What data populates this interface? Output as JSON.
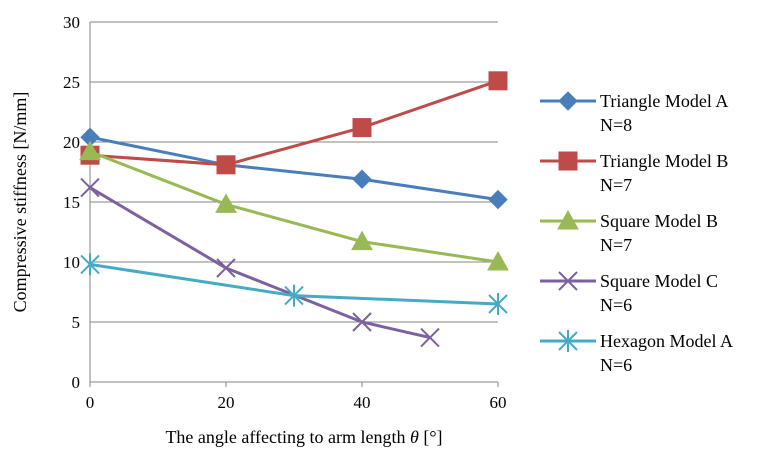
{
  "chart_data": {
    "type": "line",
    "title": "",
    "xlabel": "The angle affecting to arm length θ [°]",
    "xlabel_prefix": "The angle affecting to arm length ",
    "xlabel_symbol": "θ",
    "xlabel_suffix": " [°]",
    "ylabel": "Compressive stiffness [N/mm]",
    "xlim": [
      0,
      60
    ],
    "ylim": [
      0,
      30
    ],
    "xticks": [
      0,
      20,
      40,
      60
    ],
    "yticks": [
      0,
      5,
      10,
      15,
      20,
      25,
      30
    ],
    "grid": "horizontal",
    "legend_position": "right",
    "series": [
      {
        "name": "Triangle Model A",
        "sub": "N=8",
        "color": "#4a7ebb",
        "marker": "diamond",
        "points": [
          [
            0,
            20.4
          ],
          [
            20,
            18.1
          ],
          [
            40,
            16.9
          ],
          [
            60,
            15.2
          ]
        ]
      },
      {
        "name": "Triangle Model B",
        "sub": "N=7",
        "color": "#be4b48",
        "marker": "square",
        "points": [
          [
            0,
            18.9
          ],
          [
            20,
            18.1
          ],
          [
            40,
            21.2
          ],
          [
            60,
            25.1
          ]
        ]
      },
      {
        "name": "Square Model B",
        "sub": "N=7",
        "color": "#98b954",
        "marker": "triangle",
        "points": [
          [
            0,
            19.2
          ],
          [
            20,
            14.8
          ],
          [
            40,
            11.7
          ],
          [
            60,
            10.0
          ]
        ]
      },
      {
        "name": "Square Model C",
        "sub": "N=6",
        "color": "#7d60a0",
        "marker": "x",
        "points": [
          [
            0,
            16.2
          ],
          [
            20,
            9.5
          ],
          [
            40,
            5.0
          ],
          [
            50,
            3.7
          ]
        ]
      },
      {
        "name": "Hexagon Model A",
        "sub": "N=6",
        "color": "#46aac4",
        "marker": "star",
        "points": [
          [
            0,
            9.8
          ],
          [
            30,
            7.2
          ],
          [
            60,
            6.5
          ]
        ]
      }
    ]
  }
}
